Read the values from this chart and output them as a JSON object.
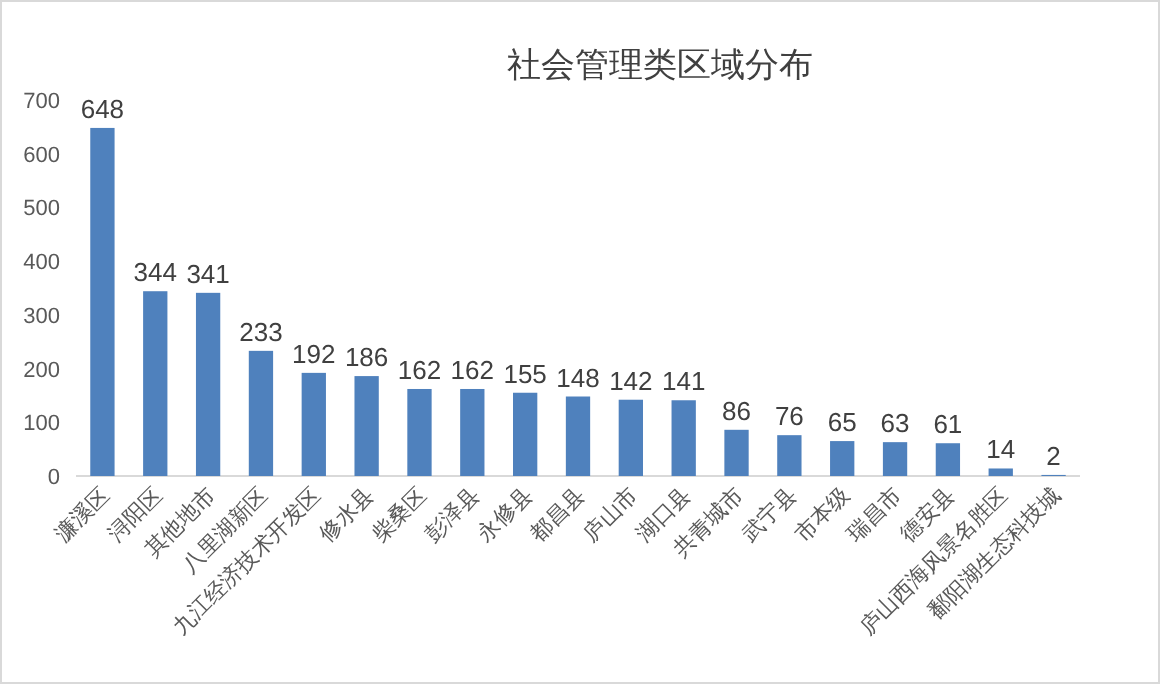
{
  "chart_data": {
    "type": "bar",
    "title": "社会管理类区域分布",
    "categories": [
      "濂溪区",
      "浔阳区",
      "其他地市",
      "八里湖新区",
      "九江经济技术开发区",
      "修水县",
      "柴桑区",
      "彭泽县",
      "永修县",
      "都昌县",
      "庐山市",
      "湖口县",
      "共青城市",
      "武宁县",
      "市本级",
      "瑞昌市",
      "德安县",
      "庐山西海风景名胜区",
      "鄱阳湖生态科技城"
    ],
    "values": [
      648,
      344,
      341,
      233,
      192,
      186,
      162,
      162,
      155,
      148,
      142,
      141,
      86,
      76,
      65,
      63,
      61,
      14,
      2
    ],
    "color": "#4f81bd",
    "ylim": [
      0,
      700
    ],
    "yticks": [
      0,
      100,
      200,
      300,
      400,
      500,
      600,
      700
    ],
    "data_labels": true
  }
}
